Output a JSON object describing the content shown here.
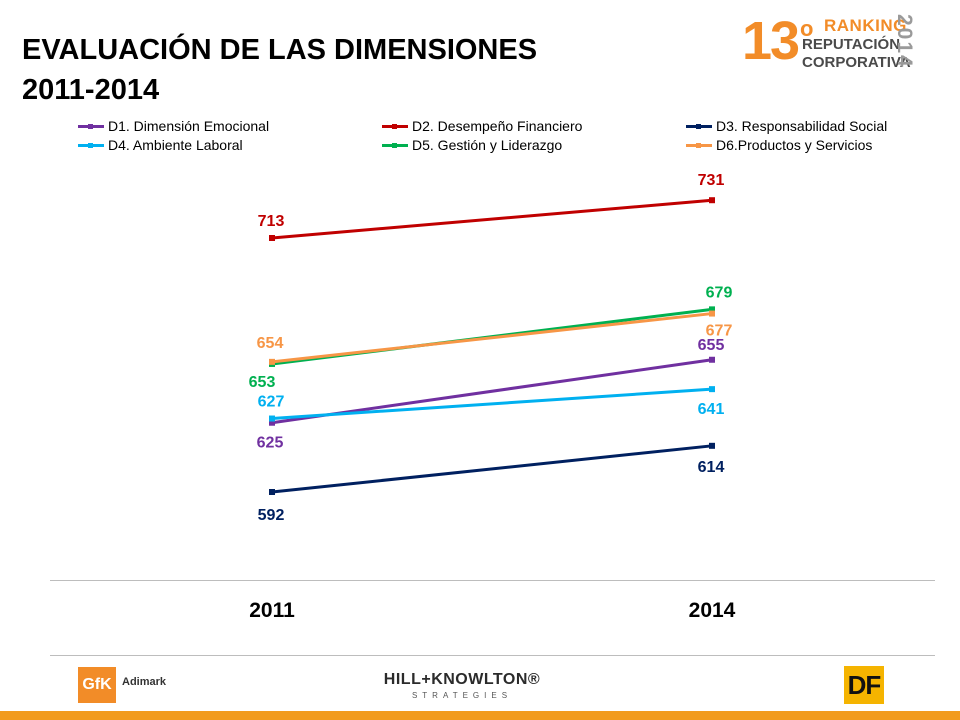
{
  "title": {
    "line1": "EVALUACIÓN DE LAS DIMENSIONES",
    "line2": "2011-2014"
  },
  "brand": {
    "number": "13",
    "ordinal": "o",
    "line1": "RANKING",
    "line2": "REPUTACIÓN",
    "line3": "CORPORATIVA",
    "year": "2014"
  },
  "colors": {
    "background": "#ffffff",
    "footer_bar": "#f29b1d"
  },
  "chart_data": {
    "type": "line",
    "categories": [
      "2011",
      "2014"
    ],
    "series": [
      {
        "name": "D1. Dimensión Emocional",
        "color": "#7030a0",
        "values": [
          625,
          655
        ]
      },
      {
        "name": "D2. Desempeño Financiero",
        "color": "#c00000",
        "values": [
          713,
          731
        ]
      },
      {
        "name": "D3. Responsabilidad Social",
        "color": "#002060",
        "values": [
          592,
          614
        ]
      },
      {
        "name": "D4. Ambiente Laboral",
        "color": "#00b0f0",
        "values": [
          627,
          641
        ]
      },
      {
        "name": "D5. Gestión y Liderazgo",
        "color": "#00b050",
        "values": [
          653,
          679
        ]
      },
      {
        "name": "D6.Productos y Servicios",
        "color": "#f79646",
        "values": [
          654,
          677
        ]
      }
    ],
    "data_labels": [
      {
        "series": 0,
        "point": 0,
        "text": "625"
      },
      {
        "series": 0,
        "point": 1,
        "text": "655"
      },
      {
        "series": 1,
        "point": 0,
        "text": "713"
      },
      {
        "series": 1,
        "point": 1,
        "text": "731"
      },
      {
        "series": 2,
        "point": 0,
        "text": "592"
      },
      {
        "series": 2,
        "point": 1,
        "text": "614"
      },
      {
        "series": 3,
        "point": 0,
        "text": "627"
      },
      {
        "series": 3,
        "point": 1,
        "text": "641"
      },
      {
        "series": 4,
        "point": 0,
        "text": "653"
      },
      {
        "series": 4,
        "point": 1,
        "text": "679"
      },
      {
        "series": 5,
        "point": 0,
        "text": "654"
      },
      {
        "series": 5,
        "point": 1,
        "text": "677"
      }
    ],
    "legend_placement": "top",
    "grid": false,
    "xlabel": "",
    "ylabel": ""
  },
  "footer": {
    "logo1": "GfK",
    "logo1_sub": "Adimark",
    "logo2": "HILL+KNOWLTON®",
    "logo2_sub": "STRATEGIES",
    "logo3": "DF"
  }
}
